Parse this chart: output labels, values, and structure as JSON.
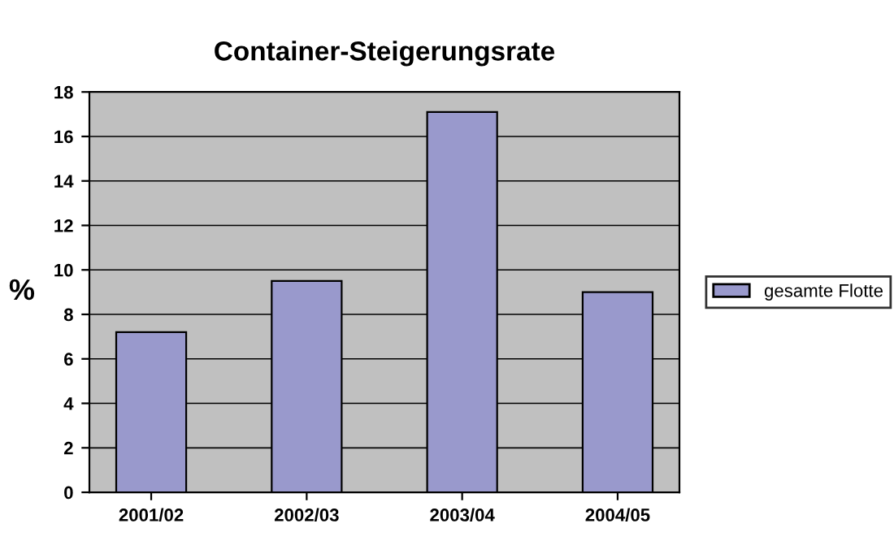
{
  "chart_data": {
    "type": "bar",
    "title": "Container-Steigerungsrate",
    "ylabel": "%",
    "categories": [
      "2001/02",
      "2002/03",
      "2003/04",
      "2004/05"
    ],
    "series": [
      {
        "name": "gesamte Flotte",
        "color": "#9999cc",
        "values": [
          7.2,
          9.5,
          17.1,
          9.0
        ]
      }
    ],
    "ylim": [
      0,
      18
    ],
    "yticks": [
      0,
      2,
      4,
      6,
      8,
      10,
      12,
      14,
      16,
      18
    ],
    "grid": "y",
    "legend": "right"
  }
}
